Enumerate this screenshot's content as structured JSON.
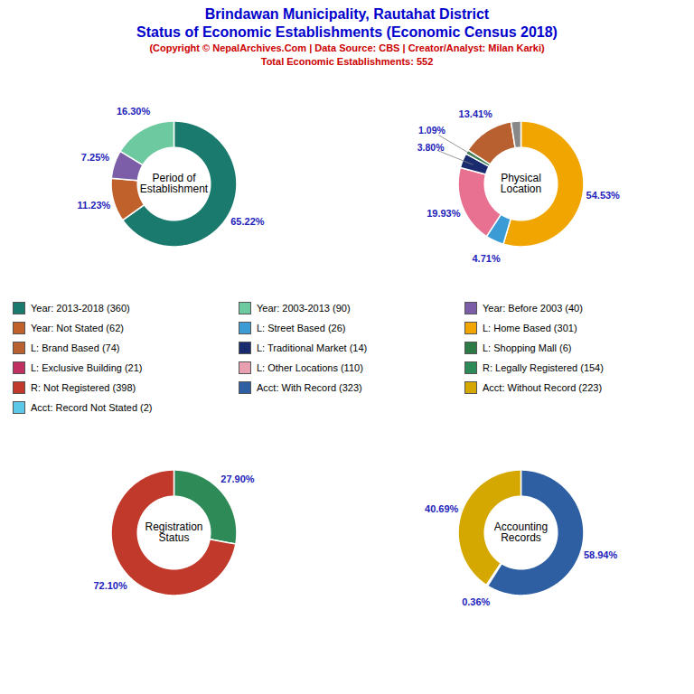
{
  "title": [
    "Brindawan Municipality, Rautahat District",
    "Status of Economic Establishments (Economic Census 2018)"
  ],
  "title_color": "#0000cc",
  "subtitle": [
    "(Copyright © NepalArchives.Com | Data Source: CBS | Creator/Analyst: Milan Karki)",
    "Total Economic Establishments: 552"
  ],
  "subtitle_color": "#cc0000",
  "legend_entries": [
    {
      "name": "Year: 2013-2018 (360)",
      "color": "#1a7a6e"
    },
    {
      "name": "Year: 2003-2013 (90)",
      "color": "#6dc9a0"
    },
    {
      "name": "Year: Before 2003 (40)",
      "color": "#7b5ea7"
    },
    {
      "name": "Year: Not Stated (62)",
      "color": "#c0612b"
    },
    {
      "name": "L: Street Based (26)",
      "color": "#3a9bd5"
    },
    {
      "name": "L: Home Based (301)",
      "color": "#f0a500"
    },
    {
      "name": "L: Brand Based (74)",
      "color": "#b86030"
    },
    {
      "name": "L: Traditional Market (14)",
      "color": "#1a2a6e"
    },
    {
      "name": "L: Shopping Mall (6)",
      "color": "#2e7a47"
    },
    {
      "name": "L: Exclusive Building (21)",
      "color": "#c03060"
    },
    {
      "name": "L: Other Locations (110)",
      "color": "#e8a0b0"
    },
    {
      "name": "R: Legally Registered (154)",
      "color": "#2e8b57"
    },
    {
      "name": "R: Not Registered (398)",
      "color": "#c0392b"
    },
    {
      "name": "Acct: With Record (323)",
      "color": "#2e5fa3"
    },
    {
      "name": "Acct: Without Record (223)",
      "color": "#d4a800"
    },
    {
      "name": "Acct: Record Not Stated (2)",
      "color": "#5bc8e8"
    }
  ],
  "chart_data": [
    {
      "type": "pie",
      "title": "Period of\nEstablishment",
      "values": [
        65.22,
        11.23,
        7.25,
        16.3
      ],
      "colors": [
        "#1a7a6e",
        "#c0612b",
        "#7b5ea7",
        "#6dc9a0"
      ],
      "data_labels": true,
      "value_labels": [
        "65.22%",
        "11.23%",
        "7.25%",
        "16.30%"
      ],
      "label_color": "#2222bb"
    },
    {
      "type": "pie",
      "title": "Physical\nLocation",
      "values": [
        54.53,
        4.71,
        19.93,
        3.8,
        1.09,
        13.41,
        2.53
      ],
      "colors": [
        "#f0a500",
        "#3a9bd5",
        "#e87090",
        "#1a2a6e",
        "#2e7a47",
        "#b86030",
        "#888888"
      ],
      "data_labels": true,
      "value_labels": [
        "54.53%",
        "4.71%",
        "19.93%",
        "3.80%",
        "1.09%",
        "13.41%",
        null
      ],
      "label_color": "#2222bb"
    },
    {
      "type": "pie",
      "title": "Registration\nStatus",
      "values": [
        27.9,
        72.1
      ],
      "colors": [
        "#2e8b57",
        "#c0392b"
      ],
      "data_labels": true,
      "value_labels": [
        "27.90%",
        "72.10%"
      ],
      "label_color": "#2222bb"
    },
    {
      "type": "pie",
      "title": "Accounting\nRecords",
      "values": [
        58.94,
        0.36,
        40.69
      ],
      "colors": [
        "#2e5fa3",
        "#5bc8e8",
        "#d4a800"
      ],
      "data_labels": true,
      "value_labels": [
        "58.94%",
        "0.36%",
        "40.69%"
      ],
      "label_color": "#2222bb"
    }
  ]
}
